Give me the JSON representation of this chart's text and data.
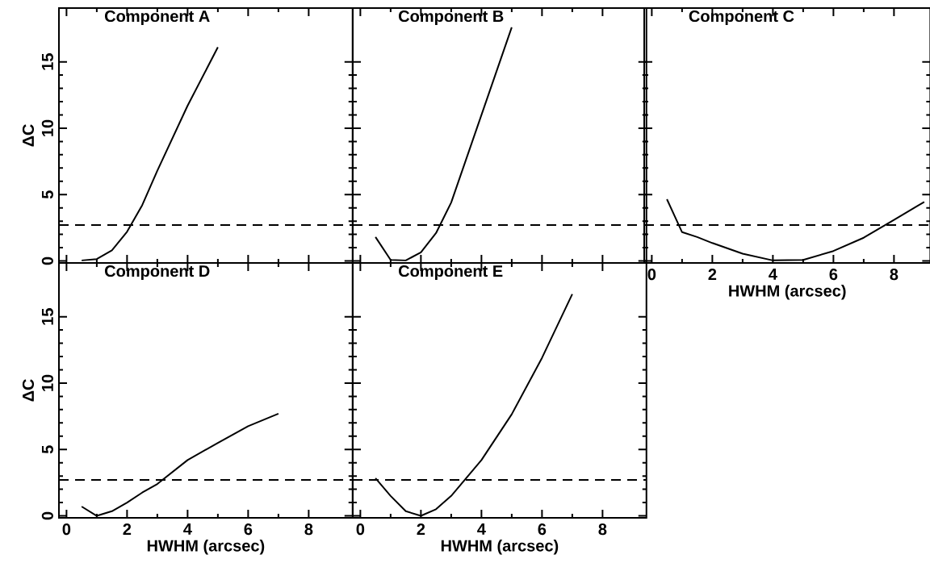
{
  "chart_data": [
    {
      "type": "line",
      "title": "Component A",
      "ylabel": "ΔC",
      "x": [
        0.5,
        1,
        1.5,
        2,
        2.5,
        3,
        4,
        5
      ],
      "values": [
        0.04,
        0.14,
        0.8,
        2.2,
        4.2,
        6.8,
        11.7,
        16.1
      ],
      "color": "#000000",
      "line_style": "solid",
      "xlim": [
        -0.25,
        9.45
      ],
      "ylim": [
        -0.15,
        19.05
      ],
      "xticks": [
        0,
        2,
        4,
        6,
        8
      ],
      "yticks": [
        0,
        5,
        10,
        15
      ],
      "tick_labels": "y",
      "ref_lines": [
        {
          "axis": "y",
          "value": 2.71,
          "line_style": "dashed",
          "color": "#000000"
        }
      ]
    },
    {
      "type": "line",
      "title": "Component B",
      "x": [
        0.5,
        1,
        1.5,
        2,
        2.5,
        3,
        4,
        5
      ],
      "values": [
        1.8,
        0.08,
        0.04,
        0.65,
        2.1,
        4.4,
        11.0,
        17.6
      ],
      "color": "#000000",
      "line_style": "solid",
      "xlim": [
        -0.25,
        9.45
      ],
      "ylim": [
        -0.15,
        19.05
      ],
      "xticks": [
        0,
        2,
        4,
        6,
        8
      ],
      "yticks": [
        0,
        5,
        10,
        15
      ],
      "tick_labels": false,
      "ref_lines": [
        {
          "axis": "y",
          "value": 2.71,
          "line_style": "dashed",
          "color": "#000000"
        }
      ]
    },
    {
      "type": "line",
      "title": "Component C",
      "xlabel": "HWHM (arcsec)",
      "x": [
        0.5,
        1,
        1.5,
        2,
        3,
        4,
        5,
        6,
        7,
        8,
        9
      ],
      "values": [
        4.65,
        2.17,
        1.8,
        1.35,
        0.55,
        0.04,
        0.08,
        0.75,
        1.75,
        3.1,
        4.45
      ],
      "color": "#000000",
      "line_style": "solid",
      "xlim": [
        -0.25,
        9.2
      ],
      "ylim": [
        -0.15,
        19.05
      ],
      "xticks": [
        0,
        2,
        4,
        6,
        8
      ],
      "yticks": [
        0,
        5,
        10,
        15
      ],
      "tick_labels": "x",
      "ref_lines": [
        {
          "axis": "y",
          "value": 2.71,
          "line_style": "dashed",
          "color": "#000000"
        }
      ]
    },
    {
      "type": "line",
      "title": "Component D",
      "xlabel": "HWHM (arcsec)",
      "ylabel": "ΔC",
      "x": [
        0.5,
        1,
        1.5,
        2,
        2.5,
        3,
        4,
        5,
        6,
        7
      ],
      "values": [
        0.7,
        0.0,
        0.35,
        1.0,
        1.75,
        2.4,
        4.2,
        5.5,
        6.75,
        7.7
      ],
      "color": "#000000",
      "line_style": "solid",
      "xlim": [
        -0.25,
        9.45
      ],
      "ylim": [
        -0.15,
        19.05
      ],
      "xticks": [
        0,
        2,
        4,
        6,
        8
      ],
      "yticks": [
        0,
        5,
        10,
        15
      ],
      "ref_lines": [
        {
          "axis": "y",
          "value": 2.71,
          "line_style": "dashed",
          "color": "#000000"
        }
      ]
    },
    {
      "type": "line",
      "title": "Component E",
      "xlabel": "HWHM (arcsec)",
      "x": [
        0.5,
        1,
        1.5,
        2,
        2.5,
        3,
        4,
        5,
        6,
        7
      ],
      "values": [
        2.83,
        1.5,
        0.35,
        0.0,
        0.5,
        1.5,
        4.2,
        7.65,
        11.9,
        16.7
      ],
      "color": "#000000",
      "line_style": "solid",
      "xlim": [
        -0.25,
        9.45
      ],
      "ylim": [
        -0.15,
        19.05
      ],
      "xticks": [
        0,
        2,
        4,
        6,
        8
      ],
      "yticks": [
        0,
        5,
        10,
        15
      ],
      "tick_labels": "x",
      "ref_lines": [
        {
          "axis": "y",
          "value": 2.71,
          "line_style": "dashed",
          "color": "#000000"
        }
      ]
    }
  ]
}
